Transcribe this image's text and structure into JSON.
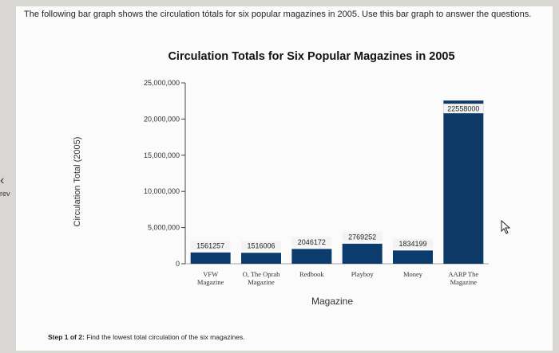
{
  "intro_text": "The following bar graph shows the circulation tótals for six popular magazines in 2005. Use this bar graph to answer the questions.",
  "nav": {
    "prev_label": "rev",
    "prev_icon": "chevron-left-icon"
  },
  "step": {
    "prefix": "Step 1 of 2:",
    "text": "Find the lowest total circulation of the six magazines."
  },
  "colors": {
    "bar": "#0c3c6e",
    "bar_highlight": "#0e3a68"
  },
  "chart_data": {
    "type": "bar",
    "title": "Circulation Totals for Six Popular Magazines in 2005",
    "xlabel": "Magazine",
    "ylabel": "Circulation Total (2005)",
    "ylim": [
      0,
      25000000
    ],
    "yticks": [
      "0",
      "5,000,000",
      "10,000,000",
      "15,000,000",
      "20,000,000",
      "25,000,000"
    ],
    "ytick_values": [
      0,
      5000000,
      10000000,
      15000000,
      20000000,
      25000000
    ],
    "categories": [
      [
        "VFW",
        "Magazine"
      ],
      [
        "O, The Oprah",
        "Magazine"
      ],
      [
        "Redbook"
      ],
      [
        "Playboy"
      ],
      [
        "Money"
      ],
      [
        "AARP The",
        "Magazine"
      ]
    ],
    "values": [
      1561257,
      1516006,
      2046172,
      2769252,
      1834199,
      22558000
    ],
    "data_labels": [
      "1561257",
      "1516006",
      "2046172",
      "2769252",
      "1834199",
      "22558000"
    ],
    "grid": false,
    "legend": "none"
  }
}
